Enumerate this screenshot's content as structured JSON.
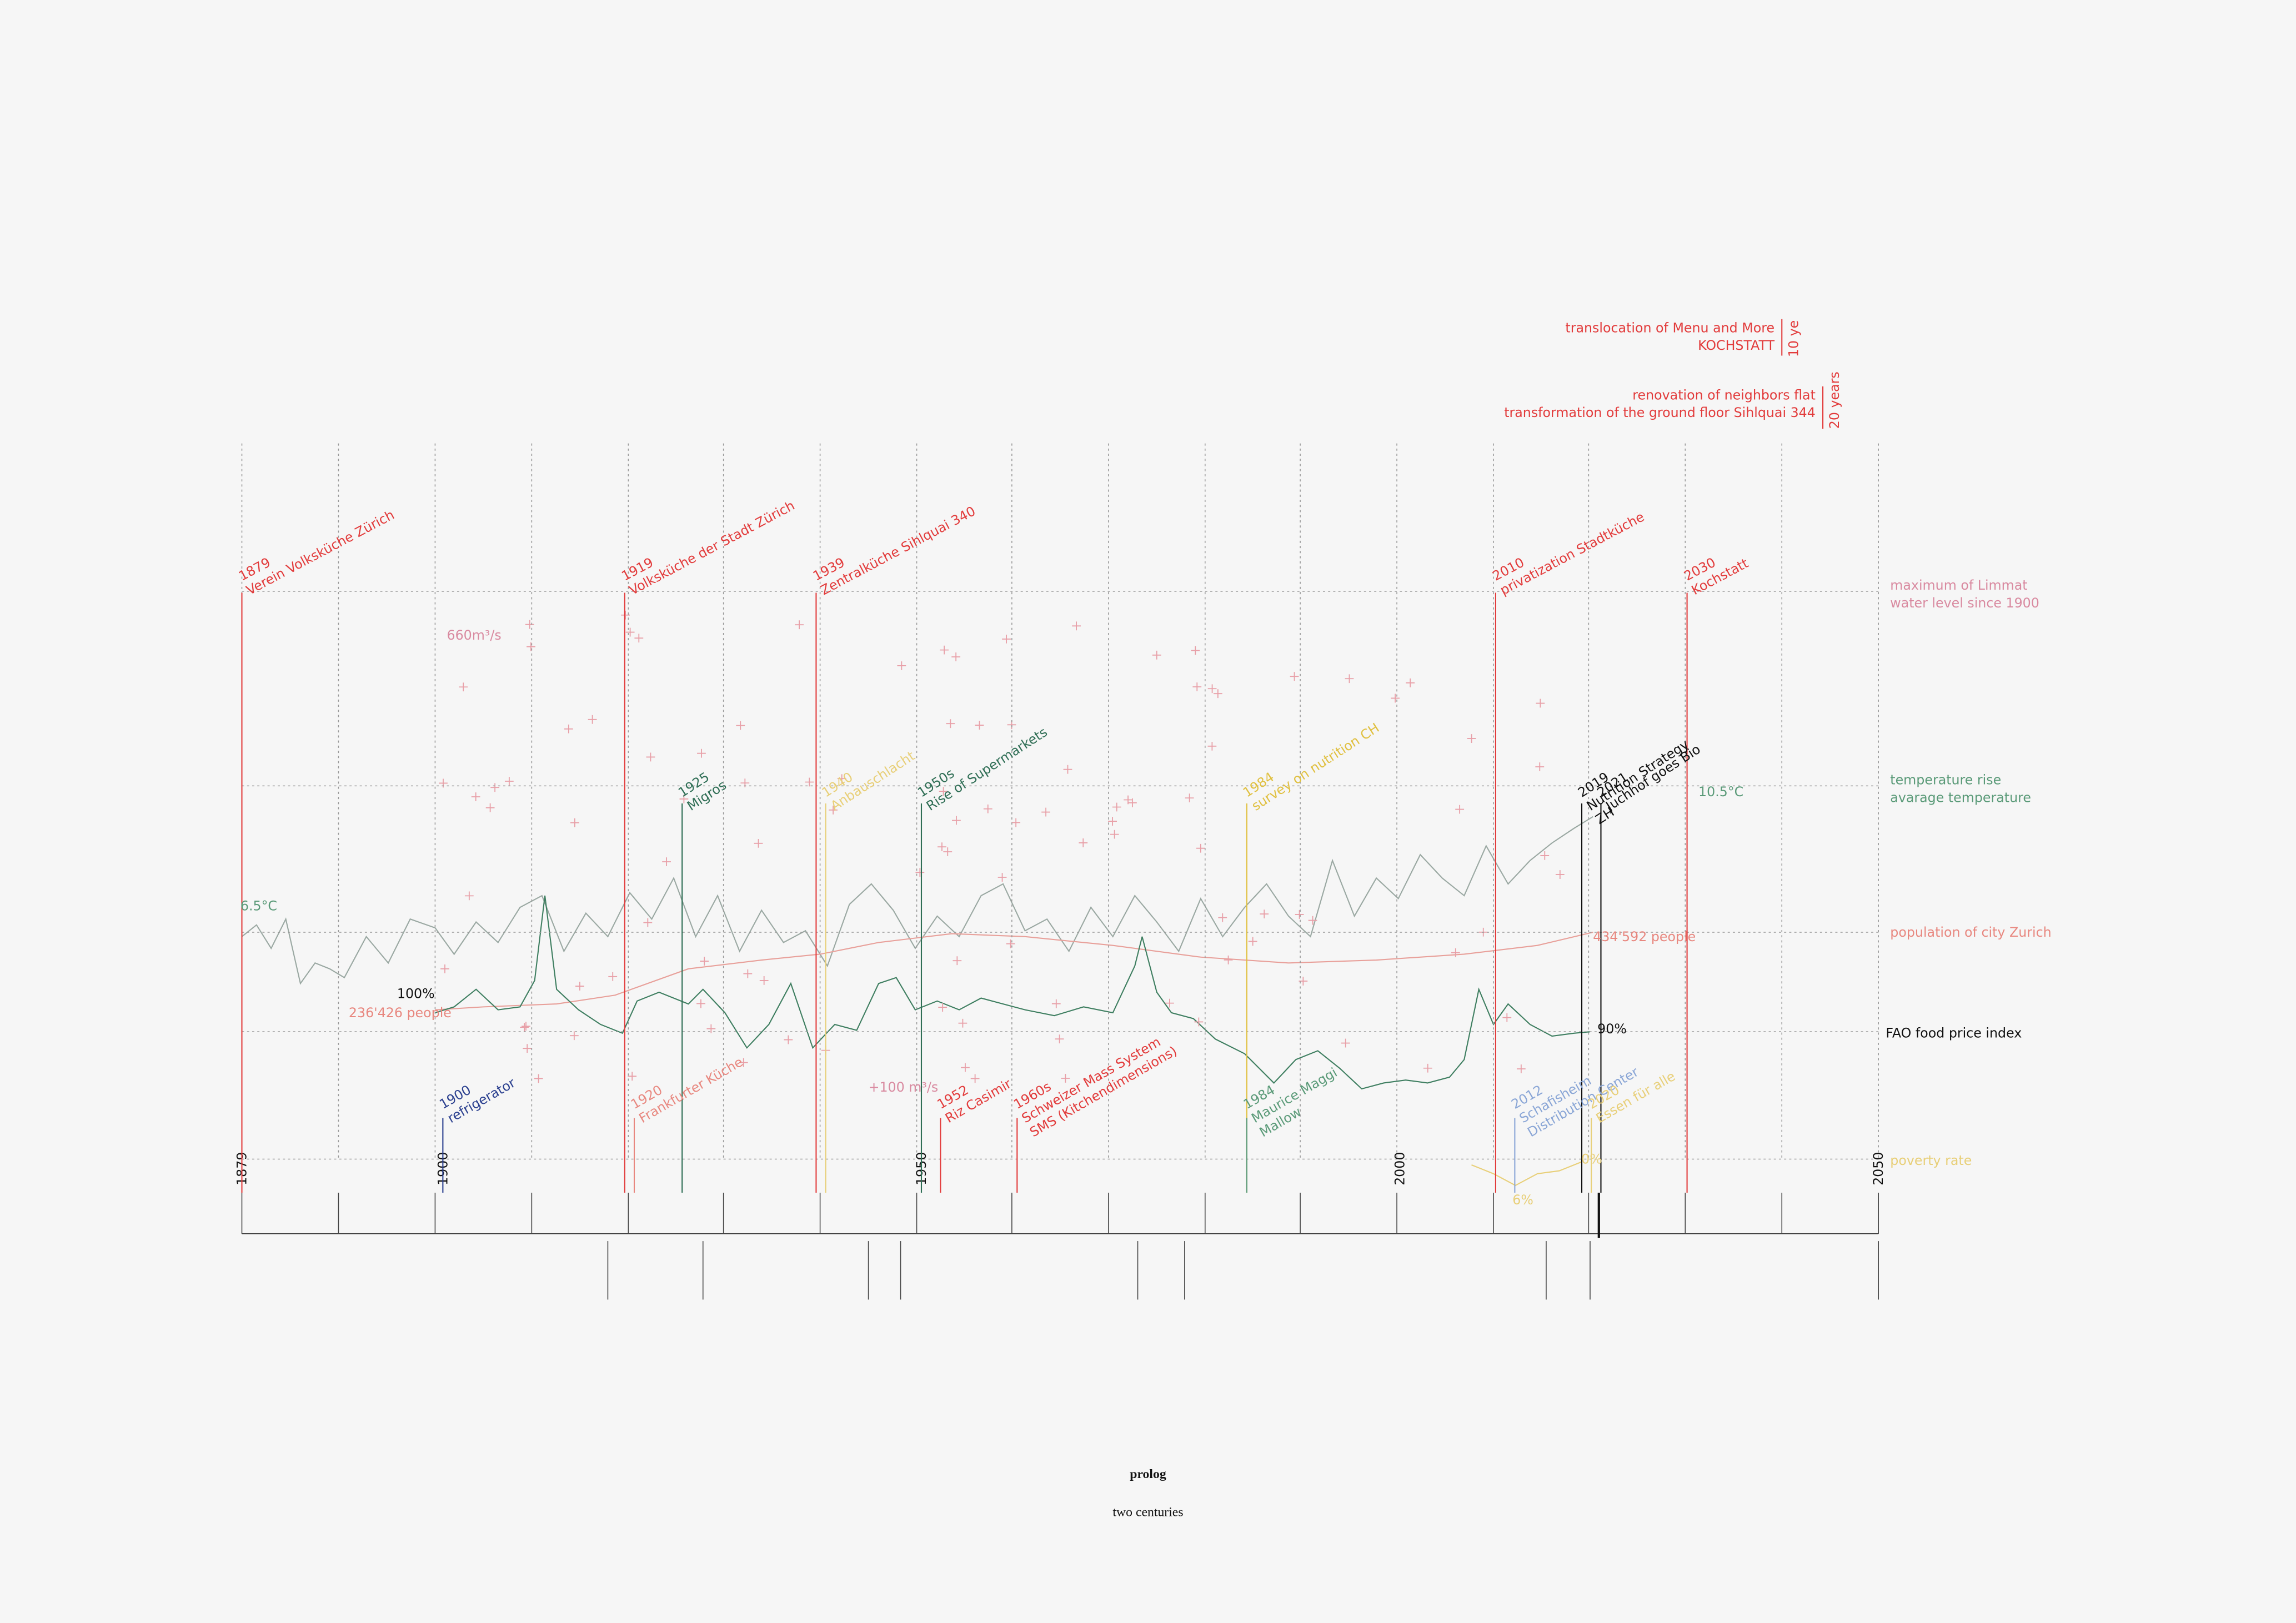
{
  "header": {
    "title": "prolog",
    "subtitle": "two centuries"
  },
  "axis_years": [
    "1879",
    "1900",
    "1950",
    "2000",
    "2050"
  ],
  "top_notes": [
    {
      "lines": [
        "translocation of Menu and More",
        "KOCHSTATT"
      ],
      "span": "10 ye"
    },
    {
      "lines": [
        "renovation of neighbors flat",
        "transformation of the ground floor Sihlquai 344"
      ],
      "span": "20 years"
    }
  ],
  "top_events": [
    {
      "text": [
        "1879",
        "Verein Volksküche Zürich"
      ],
      "color": "#e23b3b"
    },
    {
      "text": [
        "1919",
        "Volksküche der Stadt Zürich"
      ],
      "color": "#e23b3b"
    },
    {
      "text": [
        "1939",
        "Zentralküche Sihlquai 340"
      ],
      "color": "#e23b3b"
    },
    {
      "text": [
        "2010",
        "privatization Stadtküche"
      ],
      "color": "#e23b3b"
    },
    {
      "text": [
        "2030",
        "Kochstatt"
      ],
      "color": "#e23b3b"
    }
  ],
  "middle_events": [
    {
      "text": [
        "1925",
        "Migros"
      ],
      "color": "#2f6e55"
    },
    {
      "text": [
        "1940",
        "Anbauschlacht"
      ],
      "color": "#e8cf78"
    },
    {
      "text": [
        "1950s",
        "Rise of Supermarkets"
      ],
      "color": "#2f6e55"
    },
    {
      "text": [
        "1984",
        "survey on nutrition CH"
      ],
      "color": "#e0c040"
    },
    {
      "text": [
        "2019",
        "Nutrition Strategy",
        "ZH"
      ],
      "color": "#111111"
    },
    {
      "text": [
        "2021",
        "Juchhof goes Bio"
      ],
      "color": "#111111"
    }
  ],
  "bottom_events": [
    {
      "text": [
        "1900",
        "refrigerator"
      ],
      "color": "#2a3f8f"
    },
    {
      "text": [
        "1920",
        "Frankfurter Küche"
      ],
      "color": "#e8877f"
    },
    {
      "text": [
        "1952",
        "Riz Casimir"
      ],
      "color": "#e23b3b"
    },
    {
      "text": [
        "1960s",
        "Schweizer Mass System",
        "SMS (Kitchendimensions)"
      ],
      "color": "#e23b3b"
    },
    {
      "text": [
        "1984",
        "Maurice Maggi",
        "Mallow"
      ],
      "color": "#5a9a78"
    },
    {
      "text": [
        "2012",
        "Schafisheim",
        "Distribution Center"
      ],
      "color": "#8aa6d6"
    },
    {
      "text": [
        "2020",
        "Essen für alle"
      ],
      "color": "#e8cf78"
    }
  ],
  "legend": [
    {
      "lines": [
        "maximum of Limmat",
        "water level since 1900"
      ],
      "color": "#d98aa0"
    },
    {
      "lines": [
        "temperature rise",
        "avarage temperature"
      ],
      "color": "#5a9a78"
    },
    {
      "lines": [
        "population of city Zurich"
      ],
      "color": "#e8877f"
    },
    {
      "lines": [
        "FAO food price index"
      ],
      "color": "#111111"
    },
    {
      "lines": [
        "poverty rate"
      ],
      "color": "#e8cf78"
    }
  ],
  "annotations": {
    "limmat_max": "660m³/s",
    "limmat_add": "+100 m³/s",
    "temp_start": "6.5°C",
    "temp_end": "10.5°C",
    "fao_start": "100%",
    "pop_start": "236'426 people",
    "pop_end": "434'592 people",
    "fao_end": "90%",
    "poverty_low": "6%",
    "poverty_end": "0%"
  }
}
